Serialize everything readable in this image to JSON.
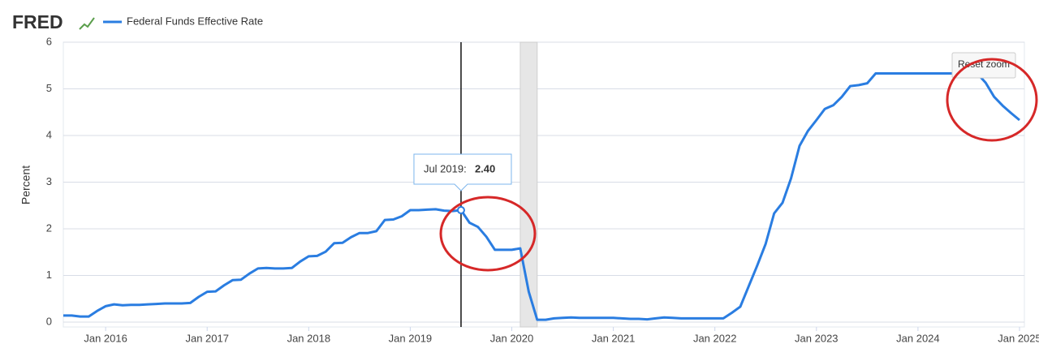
{
  "chart_data": {
    "type": "line",
    "brand": "FRED",
    "ylabel": "Percent",
    "series": [
      {
        "name": "Federal Funds Effective Rate",
        "color": "#2a7de1",
        "values": [
          0.14,
          0.14,
          0.12,
          0.12,
          0.24,
          0.34,
          0.38,
          0.36,
          0.37,
          0.37,
          0.38,
          0.39,
          0.4,
          0.4,
          0.4,
          0.41,
          0.54,
          0.65,
          0.66,
          0.79,
          0.9,
          0.91,
          1.04,
          1.15,
          1.16,
          1.15,
          1.15,
          1.16,
          1.3,
          1.41,
          1.42,
          1.51,
          1.69,
          1.7,
          1.82,
          1.91,
          1.91,
          1.95,
          2.19,
          2.2,
          2.27,
          2.4,
          2.4,
          2.41,
          2.42,
          2.39,
          2.38,
          2.4,
          2.13,
          2.04,
          1.83,
          1.55,
          1.55,
          1.55,
          1.58,
          0.65,
          0.05,
          0.05,
          0.08,
          0.09,
          0.1,
          0.09,
          0.09,
          0.09,
          0.09,
          0.09,
          0.08,
          0.07,
          0.07,
          0.06,
          0.08,
          0.1,
          0.09,
          0.08,
          0.08,
          0.08,
          0.08,
          0.08,
          0.08,
          0.2,
          0.33,
          0.77,
          1.21,
          1.68,
          2.33,
          2.56,
          3.08,
          3.78,
          4.1,
          4.33,
          4.57,
          4.65,
          4.83,
          5.06,
          5.08,
          5.12,
          5.33,
          5.33,
          5.33,
          5.33,
          5.33,
          5.33,
          5.33,
          5.33,
          5.33,
          5.33,
          5.33,
          5.33,
          5.33,
          5.13,
          4.83,
          4.64,
          4.48,
          4.33
        ]
      }
    ],
    "x_start": "2015-08",
    "xlim": [
      "2015-08",
      "2025-01"
    ],
    "xticks": [
      {
        "value": "2016-01",
        "label": "Jan 2016"
      },
      {
        "value": "2017-01",
        "label": "Jan 2017"
      },
      {
        "value": "2018-01",
        "label": "Jan 2018"
      },
      {
        "value": "2019-01",
        "label": "Jan 2019"
      },
      {
        "value": "2020-01",
        "label": "Jan 2020"
      },
      {
        "value": "2021-01",
        "label": "Jan 2021"
      },
      {
        "value": "2022-01",
        "label": "Jan 2022"
      },
      {
        "value": "2023-01",
        "label": "Jan 2023"
      },
      {
        "value": "2024-01",
        "label": "Jan 2024"
      },
      {
        "value": "2025-01",
        "label": "Jan 2025"
      }
    ],
    "ylim": [
      0,
      6
    ],
    "yticks": [
      0,
      1,
      2,
      3,
      4,
      5,
      6
    ],
    "grid": true,
    "recessions": [
      [
        "2020-02",
        "2020-04"
      ]
    ],
    "tooltip": {
      "x": "2019-07",
      "label": "Jul 2019:",
      "value": "2.40"
    },
    "button": "Reset zoom"
  }
}
